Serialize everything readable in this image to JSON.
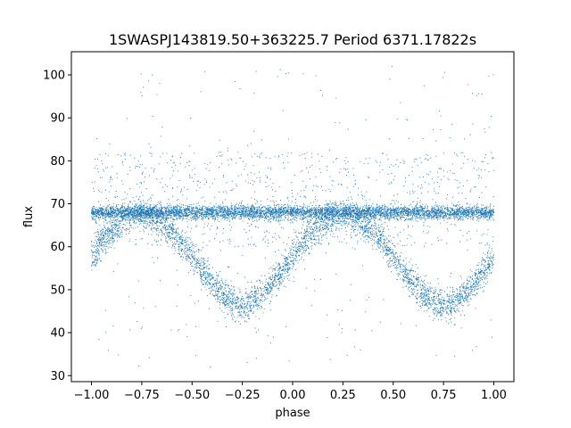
{
  "chart_data": {
    "type": "scatter",
    "title": "1SWASPJ143819.50+363225.7 Period 6371.17822s",
    "xlabel": "phase",
    "ylabel": "flux",
    "xlim": [
      -1.1,
      1.1
    ],
    "ylim": [
      28.6,
      105.4
    ],
    "x_ticks": [
      -1.0,
      -0.75,
      -0.5,
      -0.25,
      0.0,
      0.25,
      0.5,
      0.75,
      1.0
    ],
    "x_tick_labels": [
      "−1.00",
      "−0.75",
      "−0.50",
      "−0.25",
      "0.00",
      "0.25",
      "0.50",
      "0.75",
      "1.00"
    ],
    "y_ticks": [
      30,
      40,
      50,
      60,
      70,
      80,
      90,
      100
    ],
    "y_tick_labels": [
      "30",
      "40",
      "50",
      "60",
      "70",
      "80",
      "90",
      "100"
    ],
    "grid": false,
    "legend": "none",
    "marker_color": "#1f77b4",
    "series": [
      {
        "components": [
          {
            "description": "constant band",
            "x_range": [
              -1.0,
              1.0
            ],
            "y_center": 68.0,
            "y_spread": 1.5
          },
          {
            "description": "eclipse dip",
            "minima_phase": [
              -0.25,
              0.75
            ],
            "y_min": 47.0,
            "y_max": 68.0,
            "period_in_phase": 1.0
          },
          {
            "description": "scattered outliers",
            "x_range": [
              -1.0,
              1.0
            ],
            "y_range": [
              32.0,
              102.0
            ]
          }
        ]
      }
    ]
  }
}
